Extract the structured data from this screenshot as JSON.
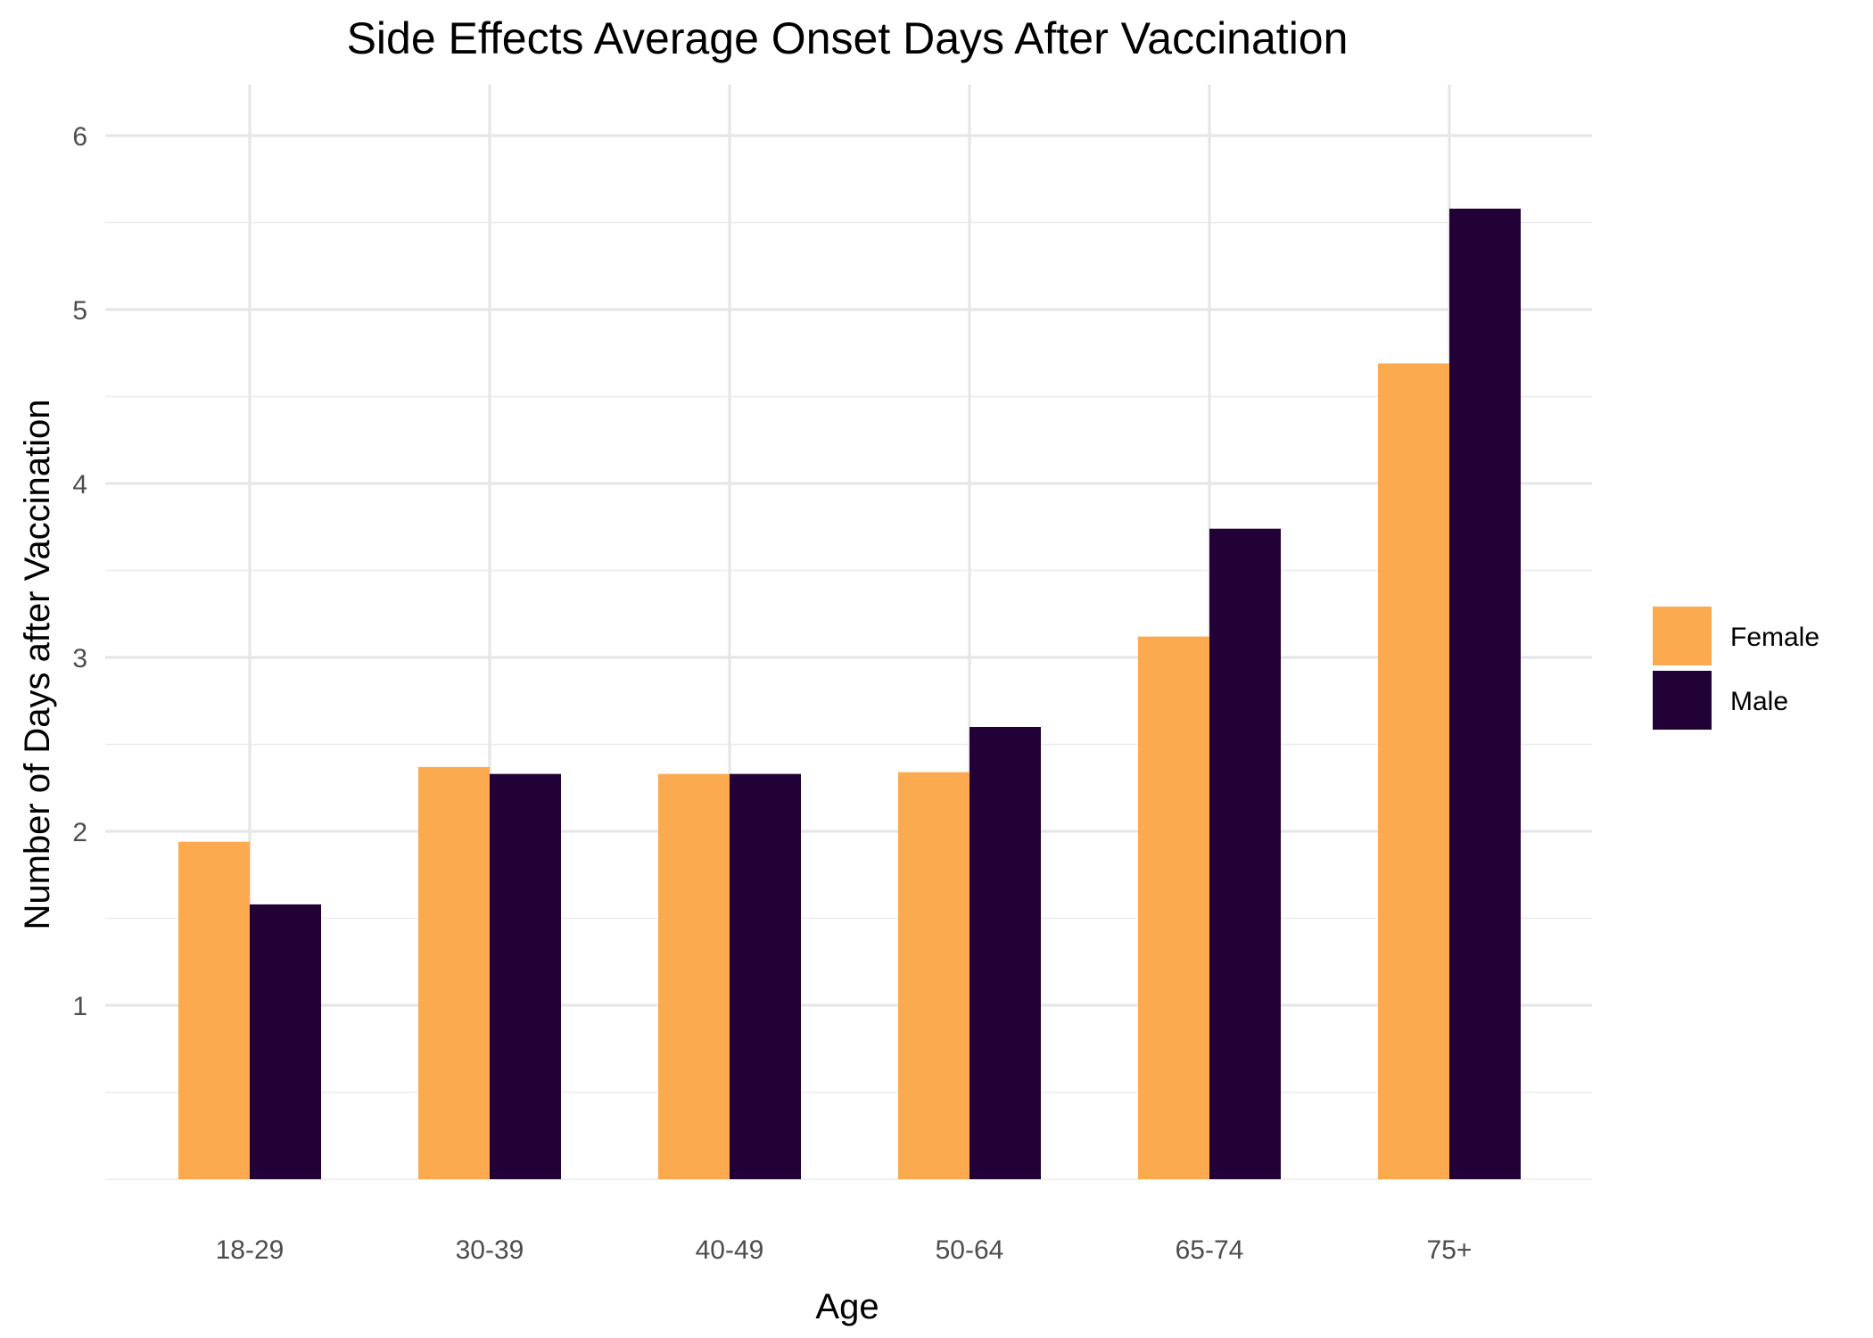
{
  "chart_data": {
    "type": "bar",
    "title": "Side Effects Average Onset Days After Vaccination",
    "xlabel": "Age",
    "ylabel": "Number of Days after Vaccination",
    "categories": [
      "18-29",
      "30-39",
      "40-49",
      "50-64",
      "65-74",
      "75+"
    ],
    "series": [
      {
        "name": "Female",
        "color": "#FBAA50",
        "values": [
          1.94,
          2.37,
          2.33,
          2.34,
          3.12,
          4.69
        ]
      },
      {
        "name": "Male",
        "color": "#220136",
        "values": [
          1.58,
          2.33,
          2.33,
          2.6,
          3.74,
          5.58
        ]
      }
    ],
    "ylim": [
      0,
      6.3
    ],
    "yticks": [
      1,
      2,
      3,
      4,
      5,
      6
    ],
    "grid": true,
    "legend_position": "right"
  }
}
